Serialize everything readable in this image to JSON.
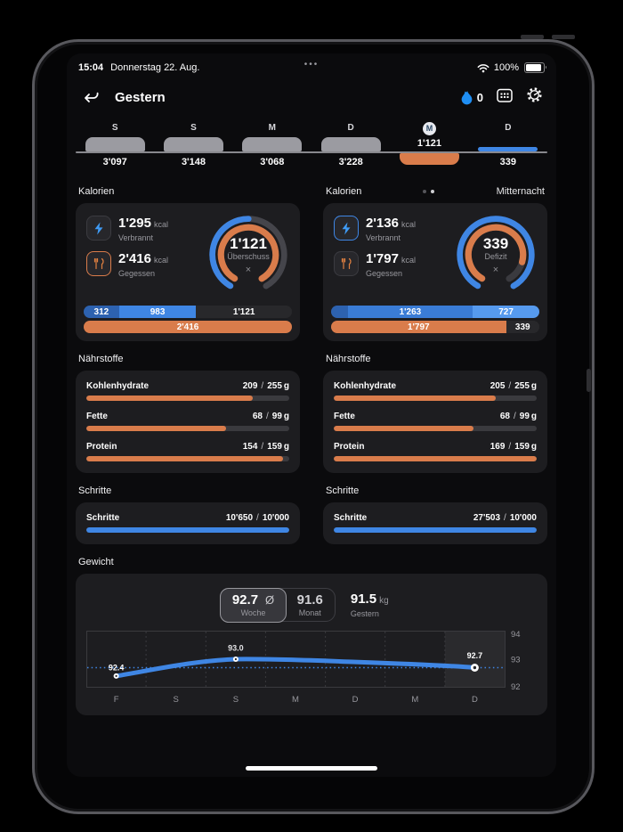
{
  "colors": {
    "accent_blue": "#3f86e4",
    "accent_orange": "#d97c4b",
    "blue_dark": "#2d62b0",
    "blue_light": "#569aee",
    "card_bg": "#1d1d20",
    "screen_bg": "#0b0b0d",
    "track_gray": "#3a3a3e",
    "week_bar_gray": "#9b9ba1"
  },
  "status_bar": {
    "time": "15:04",
    "date": "Donnerstag 22. Aug.",
    "menu": "•••",
    "battery": "100%"
  },
  "header": {
    "title": "Gestern",
    "streak": "0"
  },
  "week_selector": {
    "days": [
      {
        "label": "S",
        "value": "3'097"
      },
      {
        "label": "S",
        "value": "3'148"
      },
      {
        "label": "M",
        "value": "3'068"
      },
      {
        "label": "D",
        "value": "3'228"
      },
      {
        "label": "M",
        "value": "1'121",
        "selected": true
      },
      {
        "label": "D",
        "value": "339"
      }
    ]
  },
  "cal_left": {
    "title": "Kalorien",
    "burned": {
      "value": "1'295",
      "unit": "kcal",
      "label": "Verbrannt"
    },
    "eaten": {
      "value": "2'416",
      "unit": "kcal",
      "label": "Gegessen"
    },
    "gauge": {
      "value": "1'121",
      "label": "Überschuss",
      "close": "×"
    },
    "bar_top": {
      "segments": [
        {
          "label": "312",
          "pct": 17
        },
        {
          "label": "983",
          "pct": 37
        },
        {
          "label": "1'121",
          "pct": 46
        }
      ]
    },
    "bar_bottom": {
      "segments": [
        {
          "label": "2'416",
          "pct": 100
        }
      ]
    }
  },
  "cal_right": {
    "title": "Kalorien",
    "header_right": "Mitternacht",
    "burned": {
      "value": "2'136",
      "unit": "kcal",
      "label": "Verbrannt"
    },
    "eaten": {
      "value": "1'797",
      "unit": "kcal",
      "label": "Gegessen"
    },
    "gauge": {
      "value": "339",
      "label": "Defizit",
      "close": "×"
    },
    "bar_top": {
      "segments": [
        {
          "label": "",
          "pct": 8
        },
        {
          "label": "1'263",
          "pct": 60
        },
        {
          "label": "727",
          "pct": 32
        }
      ]
    },
    "bar_bottom": {
      "segments": [
        {
          "label": "1'797",
          "pct": 84
        },
        {
          "label": "339",
          "pct": 16
        }
      ]
    }
  },
  "nut_left": {
    "title": "Nährstoffe",
    "rows": [
      {
        "label": "Kohlenhydrate",
        "value": "209",
        "sep": "/",
        "target": "255",
        "unit": "g",
        "pct": 82
      },
      {
        "label": "Fette",
        "value": "68",
        "sep": "/",
        "target": "99",
        "unit": "g",
        "pct": 69
      },
      {
        "label": "Protein",
        "value": "154",
        "sep": "/",
        "target": "159",
        "unit": "g",
        "pct": 97
      }
    ]
  },
  "nut_right": {
    "title": "Nährstoffe",
    "rows": [
      {
        "label": "Kohlenhydrate",
        "value": "205",
        "sep": "/",
        "target": "255",
        "unit": "g",
        "pct": 80
      },
      {
        "label": "Fette",
        "value": "68",
        "sep": "/",
        "target": "99",
        "unit": "g",
        "pct": 69
      },
      {
        "label": "Protein",
        "value": "169",
        "sep": "/",
        "target": "159",
        "unit": "g",
        "pct": 100
      }
    ]
  },
  "steps_left": {
    "title": "Schritte",
    "row_label": "Schritte",
    "value": "10'650",
    "sep": "/",
    "target": "10'000",
    "pct": 100
  },
  "steps_right": {
    "title": "Schritte",
    "row_label": "Schritte",
    "value": "27'503",
    "sep": "/",
    "target": "10'000",
    "pct": 100
  },
  "weight": {
    "title": "Gewicht",
    "avg_week": {
      "value": "92.7",
      "symbol": "Ø",
      "label": "Woche"
    },
    "avg_month": {
      "value": "91.6",
      "label": "Monat"
    },
    "yesterday": {
      "value": "91.5",
      "unit": "kg",
      "label": "Gestern"
    },
    "chart_data": {
      "type": "line",
      "x": [
        "F",
        "S",
        "S",
        "M",
        "D",
        "M",
        "D"
      ],
      "values": [
        92.4,
        92.7,
        93.0,
        92.95,
        92.9,
        92.8,
        92.7
      ],
      "point_labels": [
        "92.4",
        "93.0",
        "92.7"
      ],
      "average_line": 92.7,
      "ylim": [
        92,
        94
      ],
      "yticks": [
        "94",
        "93",
        "92"
      ],
      "highlighted_column_index": 6,
      "grid": "dashed-vertical",
      "legend": "none"
    }
  }
}
